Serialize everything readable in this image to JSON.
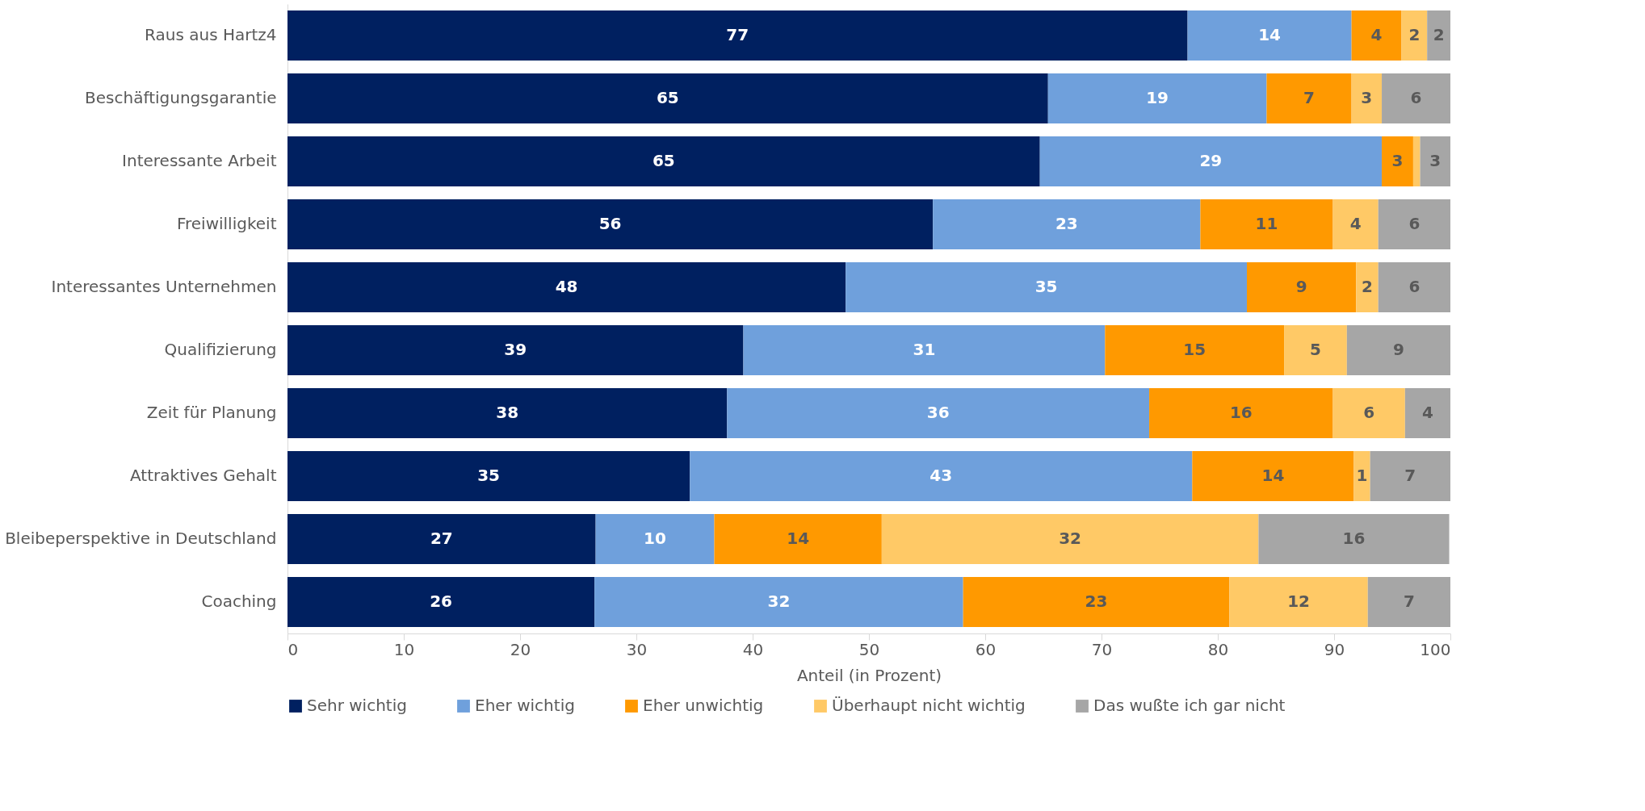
{
  "chart_data": {
    "type": "bar",
    "orientation": "horizontal",
    "stacked": true,
    "xlabel": "Anteil (in Prozent)",
    "legend": "bottom",
    "grid": false,
    "xlim": [
      0,
      100
    ],
    "xticks": [
      0,
      10,
      20,
      30,
      40,
      50,
      60,
      70,
      80,
      90,
      100
    ],
    "categories": [
      "Raus aus Hartz4",
      "Beschäftigungsgarantie",
      "Interessante Arbeit",
      "Freiwilligkeit",
      "Interessantes Unternehmen",
      "Qualifizierung",
      "Zeit für Planung",
      "Attraktives Gehalt",
      "Bleibeperspektive in Deutschland",
      "Coaching"
    ],
    "series": [
      {
        "name": "Sehr wichtig",
        "color": "#002060",
        "values": [
          77.4,
          65.4,
          64.7,
          55.5,
          48.0,
          39.2,
          37.8,
          34.6,
          26.5,
          26.4
        ],
        "value_labels": [
          "77",
          "65",
          "65",
          "56",
          "48",
          "39",
          "38",
          "35",
          "27",
          "26"
        ]
      },
      {
        "name": "Eher wichtig",
        "color": "#6fa0dc",
        "values": [
          14.1,
          18.8,
          29.4,
          23.0,
          34.5,
          31.1,
          36.3,
          43.2,
          10.2,
          31.7
        ],
        "value_labels": [
          "14",
          "19",
          "29",
          "23",
          "35",
          "31",
          "36",
          "43",
          "10",
          "32"
        ]
      },
      {
        "name": "Eher unwichtig",
        "color": "#ff9900",
        "values": [
          4.3,
          7.3,
          2.7,
          11.4,
          9.4,
          15.4,
          15.8,
          13.9,
          14.4,
          22.9
        ],
        "value_labels": [
          "4",
          "7",
          "3",
          "11",
          "9",
          "15",
          "16",
          "14",
          "14",
          "23"
        ]
      },
      {
        "name": "Überhaupt nicht wichtig",
        "color": "#ffc966",
        "values": [
          2.2,
          2.6,
          0.6,
          3.9,
          1.9,
          5.4,
          6.2,
          1.4,
          32.4,
          11.9
        ],
        "value_labels": [
          "2",
          "3",
          null,
          "4",
          "2",
          "5",
          "6",
          "1",
          "32",
          "12"
        ]
      },
      {
        "name": "Das wußte ich gar nicht",
        "color": "#a6a6a6",
        "values": [
          2.0,
          5.9,
          2.6,
          6.2,
          6.2,
          8.9,
          3.9,
          6.9,
          16.4,
          7.1
        ],
        "value_labels": [
          "2",
          "6",
          "3",
          "6",
          "6",
          "9",
          "4",
          "7",
          "16",
          "7"
        ]
      }
    ]
  }
}
